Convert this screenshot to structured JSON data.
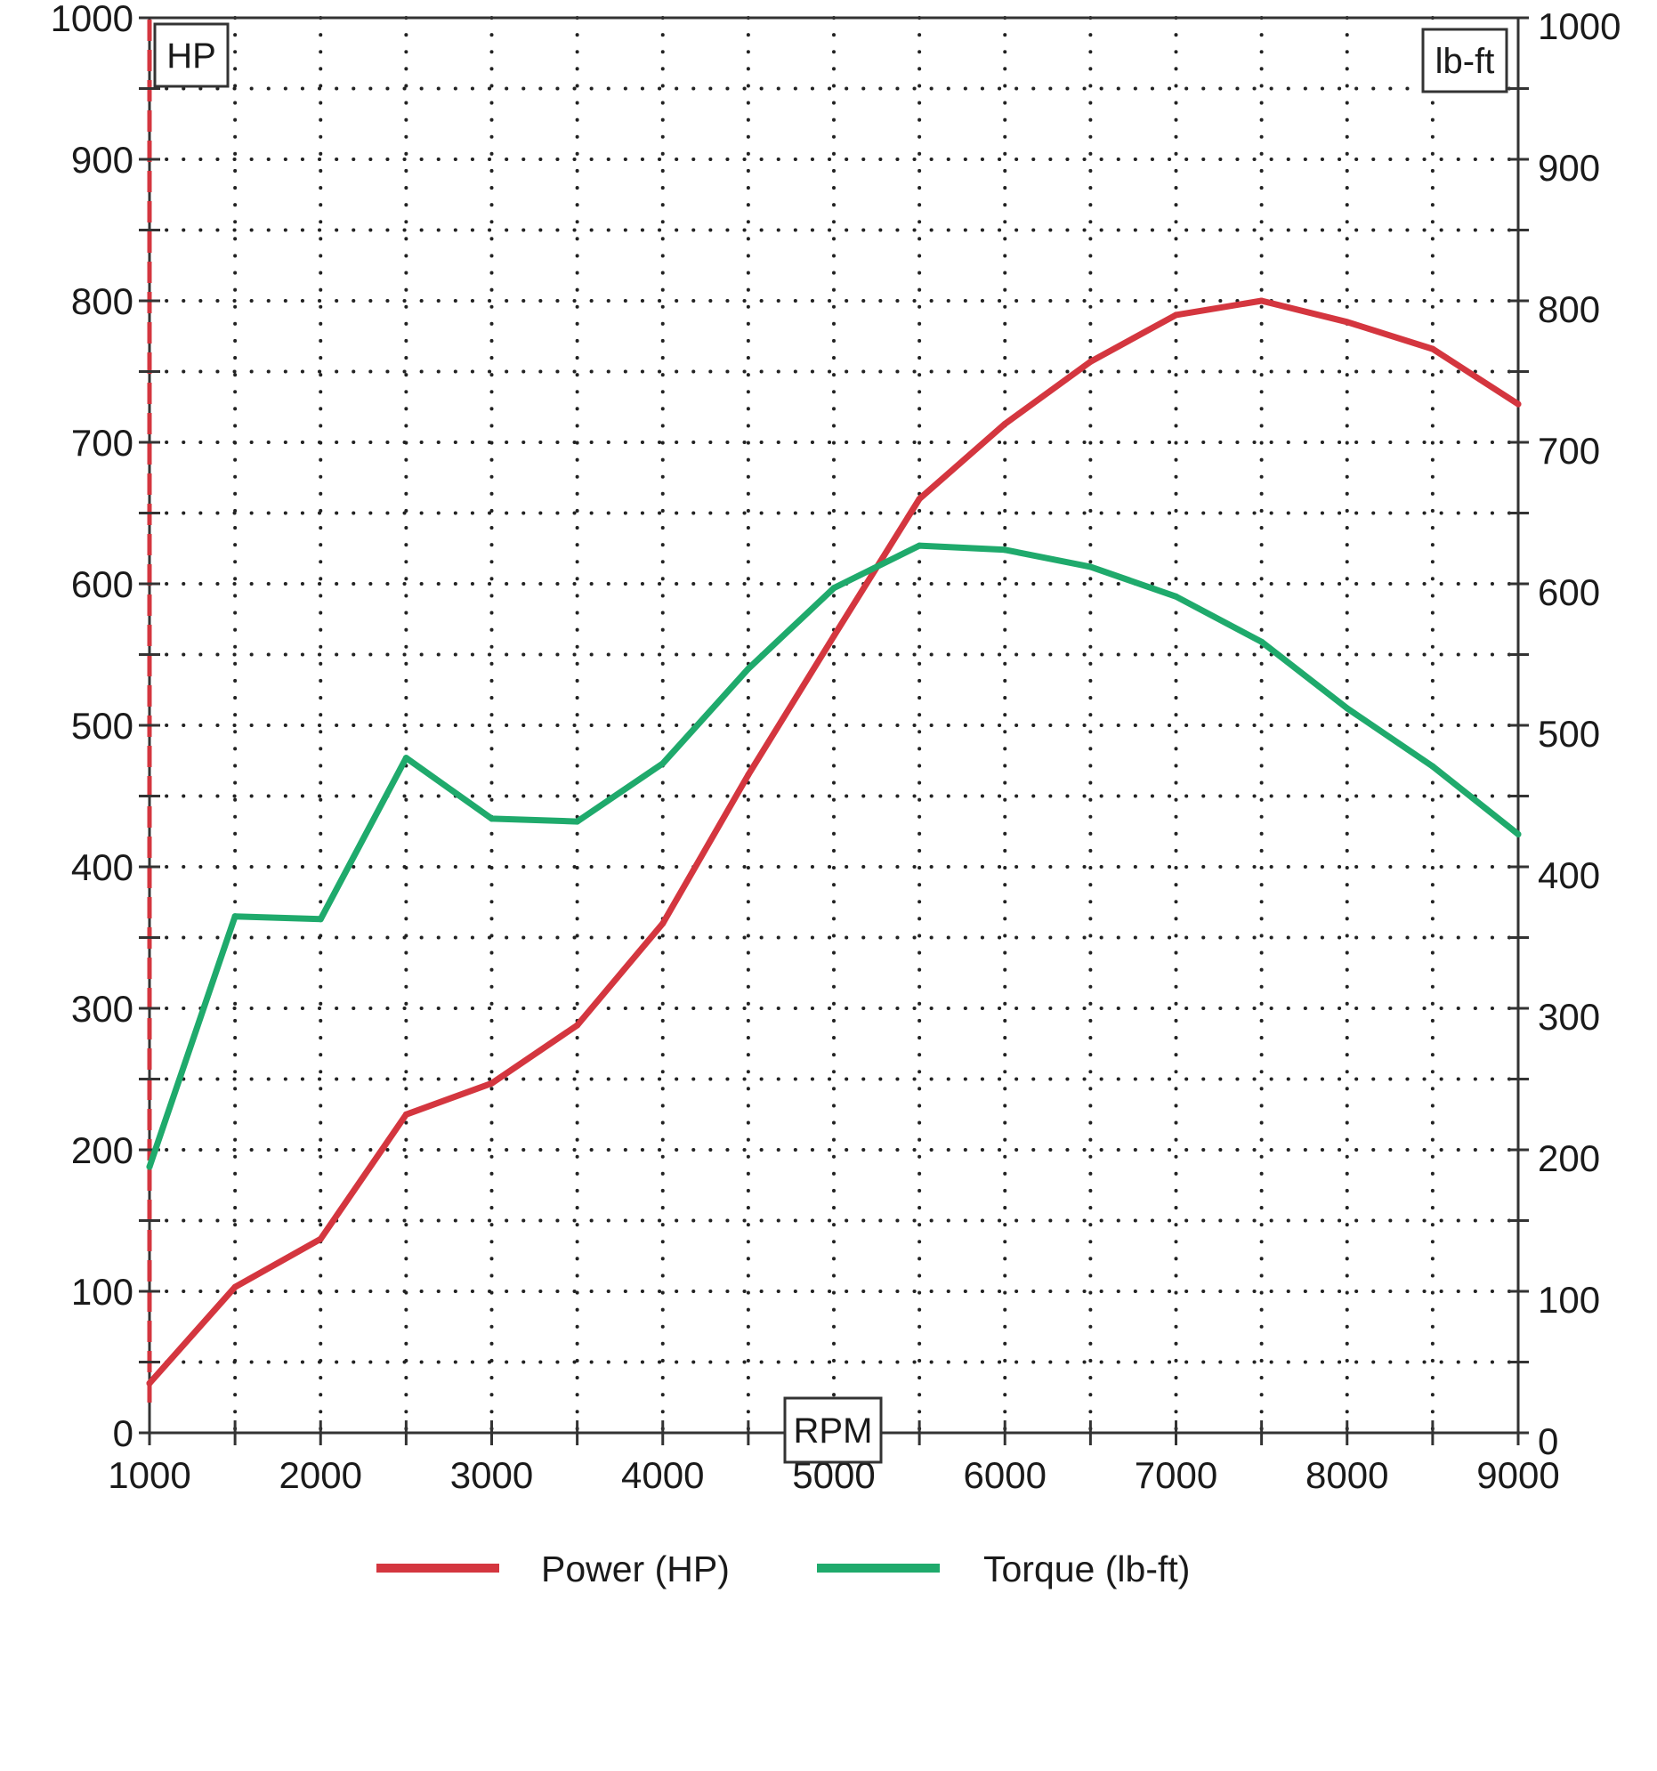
{
  "chart_data": {
    "type": "line",
    "x": [
      1000,
      1500,
      2000,
      2500,
      3000,
      3500,
      4000,
      4500,
      5000,
      5500,
      6000,
      6500,
      7000,
      7500,
      8000,
      8500,
      9000
    ],
    "series": [
      {
        "name": "Power (HP)",
        "axis": "left",
        "color": "#d4363f",
        "values": [
          35,
          103,
          137,
          225,
          247,
          288,
          360,
          465,
          563,
          660,
          713,
          757,
          790,
          800,
          785,
          766,
          727
        ]
      },
      {
        "name": "Torque (lb-ft)",
        "axis": "right",
        "color": "#1faa6c",
        "values": [
          188,
          365,
          363,
          477,
          434,
          432,
          473,
          540,
          597,
          627,
          624,
          612,
          591,
          559,
          512,
          471,
          423
        ]
      }
    ],
    "xlabel": "RPM",
    "ylabel_left": "HP",
    "ylabel_right": "lb-ft",
    "xlim": [
      1000,
      9000
    ],
    "ylim_left": [
      0,
      1000
    ],
    "ylim_right": [
      0,
      1000
    ],
    "x_ticks": [
      "1000",
      "2000",
      "3000",
      "4000",
      "5000",
      "6000",
      "7000",
      "8000",
      "9000"
    ],
    "y_ticks_left": [
      "0",
      "100",
      "200",
      "300",
      "400",
      "500",
      "600",
      "700",
      "800",
      "900",
      "1000"
    ],
    "y_ticks_right": [
      "0",
      "100",
      "200",
      "300",
      "400",
      "500",
      "600",
      "700",
      "800",
      "900",
      "1000"
    ],
    "grid": true,
    "grid_style": "dotted",
    "legend_position": "bottom"
  }
}
